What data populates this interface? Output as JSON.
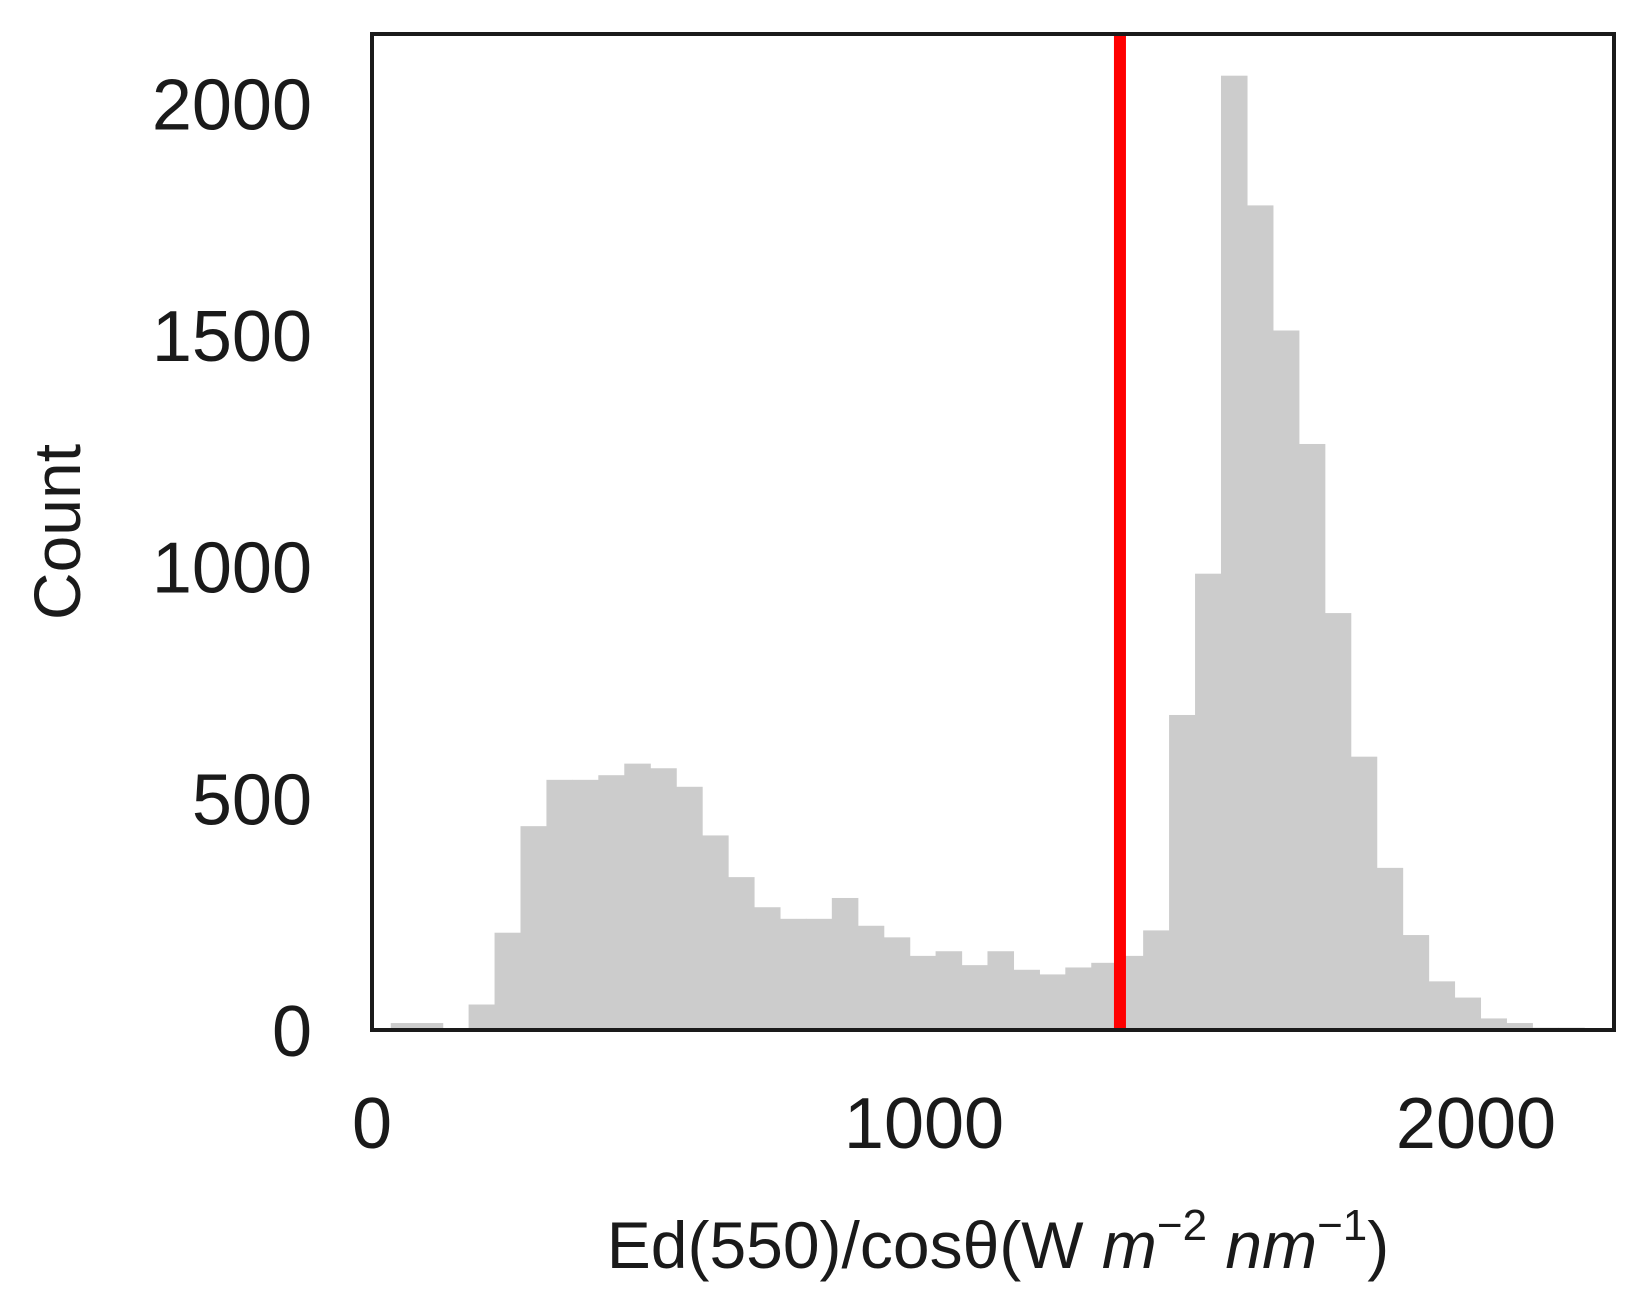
{
  "chart_data": {
    "type": "bar",
    "subtype": "histogram",
    "title": "",
    "xlabel": "Ed(550)/cosθ(W m⁻² nm⁻¹)",
    "xlabel_parts": {
      "base": "Ed(550)/cosθ(W ",
      "unit1": "m",
      "exp1": "−2",
      "unit2": "nm",
      "exp2": "−1",
      "close": ")"
    },
    "ylabel": "Count",
    "xlim": [
      0,
      2250
    ],
    "ylim": [
      0,
      2150
    ],
    "xticks": [
      0,
      1000,
      2000
    ],
    "yticks": [
      0,
      500,
      1000,
      1500,
      2000
    ],
    "xtick_labels": [
      "0",
      "1000",
      "2000"
    ],
    "ytick_labels": [
      "0",
      "500",
      "1000",
      "1500",
      "2000"
    ],
    "bin_width": 47,
    "bin_start": 34,
    "counts": [
      15,
      15,
      0,
      55,
      210,
      440,
      540,
      540,
      550,
      575,
      565,
      525,
      420,
      330,
      265,
      240,
      240,
      285,
      225,
      200,
      160,
      170,
      140,
      170,
      130,
      120,
      135,
      145,
      160,
      215,
      680,
      985,
      2060,
      1780,
      1510,
      1265,
      900,
      590,
      350,
      205,
      105,
      70,
      25,
      15,
      5,
      5,
      0
    ],
    "threshold_line": {
      "x": 1355,
      "color": "#ff0000"
    },
    "bar_color": "#cccccc",
    "grid": false,
    "legend": "none"
  }
}
